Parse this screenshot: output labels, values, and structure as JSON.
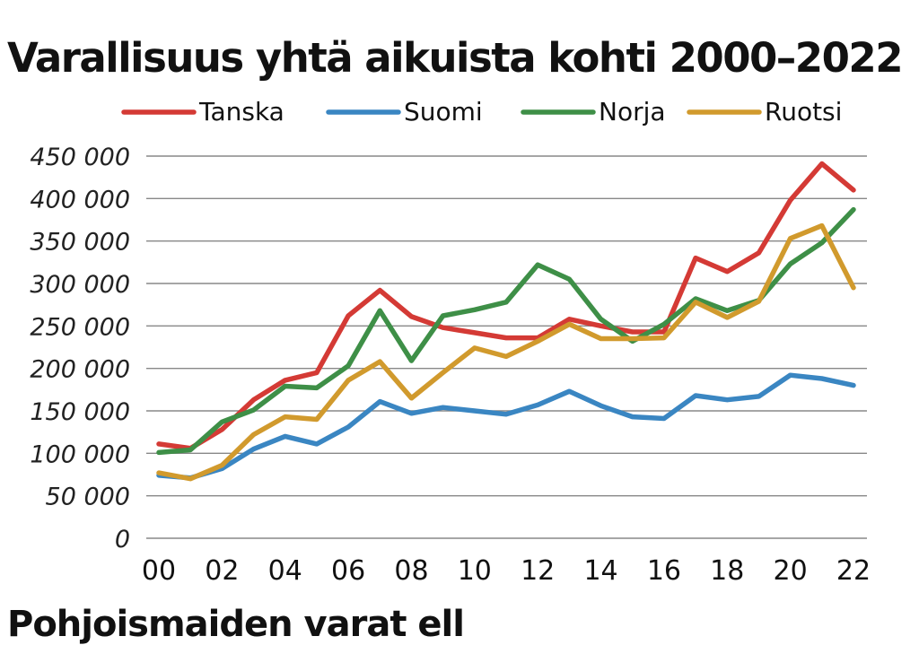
{
  "chart_data": {
    "type": "line",
    "title": "Varallisuus yhtä aikuista kohti 2000–2022",
    "xlabel": "",
    "ylabel": "",
    "x": [
      2000,
      2001,
      2002,
      2003,
      2004,
      2005,
      2006,
      2007,
      2008,
      2009,
      2010,
      2011,
      2012,
      2013,
      2014,
      2015,
      2016,
      2017,
      2018,
      2019,
      2020,
      2021,
      2022
    ],
    "x_tick_labels": [
      {
        "x": 2000,
        "label": "00"
      },
      {
        "x": 2002,
        "label": "02"
      },
      {
        "x": 2004,
        "label": "04"
      },
      {
        "x": 2006,
        "label": "06"
      },
      {
        "x": 2008,
        "label": "08"
      },
      {
        "x": 2010,
        "label": "10"
      },
      {
        "x": 2012,
        "label": "12"
      },
      {
        "x": 2014,
        "label": "14"
      },
      {
        "x": 2016,
        "label": "16"
      },
      {
        "x": 2018,
        "label": "18"
      },
      {
        "x": 2020,
        "label": "20"
      },
      {
        "x": 2022,
        "label": "22"
      }
    ],
    "y_ticks": [
      {
        "value": 0,
        "label": "0"
      },
      {
        "value": 50000,
        "label": "50 000"
      },
      {
        "value": 100000,
        "label": "100 000"
      },
      {
        "value": 150000,
        "label": "150 000"
      },
      {
        "value": 200000,
        "label": "200 000"
      },
      {
        "value": 250000,
        "label": "250 000"
      },
      {
        "value": 300000,
        "label": "300 000"
      },
      {
        "value": 350000,
        "label": "350 000"
      },
      {
        "value": 400000,
        "label": "400 000"
      },
      {
        "value": 450000,
        "label": "450 000"
      }
    ],
    "ylim": [
      0,
      450000
    ],
    "xlim": [
      2000,
      2022
    ],
    "grid": true,
    "legend_position": "top",
    "series": [
      {
        "name": "Tanska",
        "color": "#d43a35",
        "values": [
          111000,
          106000,
          128000,
          163000,
          186000,
          195000,
          262000,
          292000,
          261000,
          248000,
          242000,
          236000,
          236000,
          258000,
          250000,
          243000,
          243000,
          330000,
          314000,
          336000,
          398000,
          441000,
          410000
        ]
      },
      {
        "name": "Suomi",
        "color": "#3a86c2",
        "values": [
          74000,
          71000,
          82000,
          105000,
          120000,
          111000,
          131000,
          161000,
          147000,
          154000,
          150000,
          146000,
          157000,
          173000,
          156000,
          143000,
          141000,
          168000,
          163000,
          167000,
          192000,
          188000,
          180000
        ]
      },
      {
        "name": "Norja",
        "color": "#3e8f47",
        "values": [
          101000,
          104000,
          137000,
          151000,
          179000,
          177000,
          203000,
          268000,
          209000,
          262000,
          269000,
          278000,
          322000,
          305000,
          258000,
          232000,
          252000,
          282000,
          268000,
          280000,
          323000,
          348000,
          387000
        ]
      },
      {
        "name": "Ruotsi",
        "color": "#d19a2d",
        "values": [
          77000,
          70000,
          86000,
          122000,
          143000,
          140000,
          186000,
          208000,
          165000,
          195000,
          224000,
          214000,
          232000,
          252000,
          235000,
          235000,
          236000,
          278000,
          260000,
          279000,
          353000,
          368000,
          295000
        ]
      }
    ]
  },
  "next_section_heading": "Pohjoismaiden varat ell"
}
